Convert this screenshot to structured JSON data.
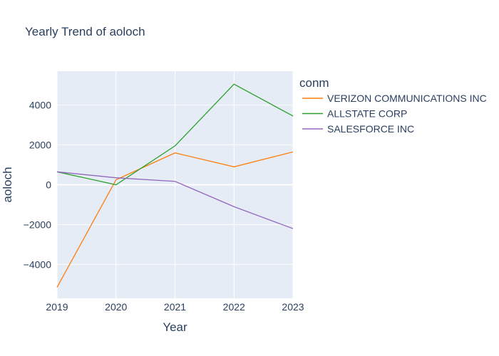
{
  "chart_data": {
    "type": "line",
    "title": "Yearly Trend of aoloch",
    "xlabel": "Year",
    "ylabel": "aoloch",
    "x": [
      2019,
      2020,
      2021,
      2022,
      2023
    ],
    "xlim": [
      2019,
      2023
    ],
    "ylim": [
      -5700,
      5700
    ],
    "yticks": [
      -4000,
      -2000,
      0,
      2000,
      4000
    ],
    "ytick_labels": [
      "−4000",
      "−2000",
      "0",
      "2000",
      "4000"
    ],
    "grid": true,
    "legend": {
      "title": "conm",
      "placement": "right"
    },
    "background_color": "#e5ecf6",
    "series": [
      {
        "name": "VERIZON COMMUNICATIONS INC",
        "color": "#ff7f0e",
        "values": [
          -5150,
          250,
          1600,
          900,
          1650
        ]
      },
      {
        "name": "ALLSTATE CORP",
        "color": "#2ca02c",
        "values": [
          650,
          0,
          1950,
          5050,
          3450
        ]
      },
      {
        "name": "SALESFORCE INC",
        "color": "#9467bd",
        "values": [
          650,
          350,
          170,
          -1100,
          -2200
        ]
      }
    ]
  }
}
